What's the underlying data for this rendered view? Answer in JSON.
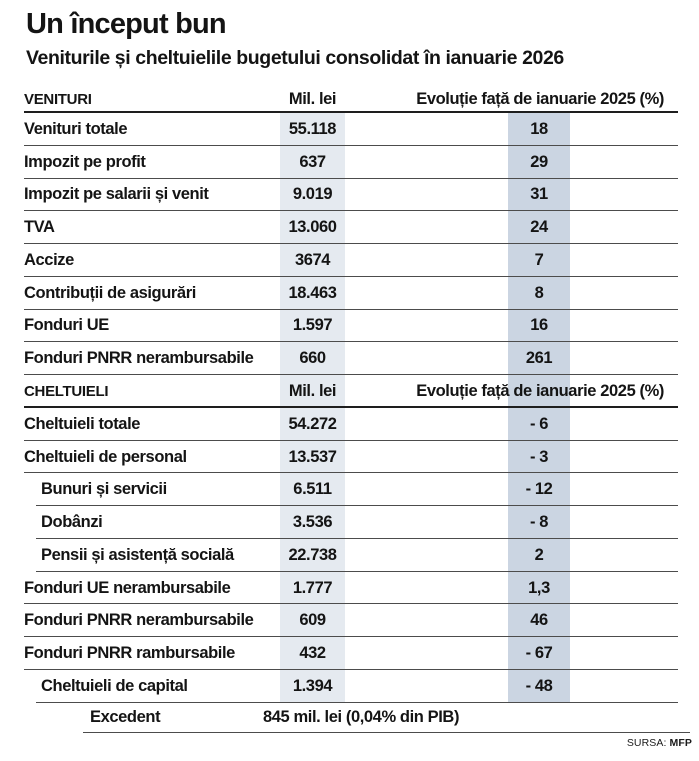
{
  "title": "Un început bun",
  "subtitle": "Veniturile și cheltuielile bugetului consolidat în ianuarie 2026",
  "source": {
    "label": "SURSA:",
    "value": "MFP"
  },
  "footer": {
    "label": "Excedent",
    "value": "845 mil. lei (0,04% din PIB)"
  },
  "colors": {
    "band_amount": "#e5eaf0",
    "band_evolution": "#cbd5e2",
    "row_rule": "#4c4c4c",
    "header_rule": "#1e1e1e"
  },
  "chart_data": {
    "type": "table",
    "title": "Un început bun",
    "subtitle": "Veniturile și cheltuielile bugetului consolidat în ianuarie 2026",
    "columns": {
      "amount": "Mil. lei",
      "evolution": "Evoluție față de ianuarie 2025 (%)"
    },
    "sections": [
      {
        "header": "VENITURI",
        "rows": [
          {
            "label": "Venituri totale",
            "amount": "55.118",
            "evolution": "18",
            "sub": false
          },
          {
            "label": "Impozit pe profit",
            "amount": "637",
            "evolution": "29",
            "sub": false
          },
          {
            "label": "Impozit pe salarii și venit",
            "amount": "9.019",
            "evolution": "31",
            "sub": false
          },
          {
            "label": "TVA",
            "amount": "13.060",
            "evolution": "24",
            "sub": false
          },
          {
            "label": "Accize",
            "amount": "3674",
            "evolution": "7",
            "sub": false
          },
          {
            "label": "Contribuții de asigurări",
            "amount": "18.463",
            "evolution": "8",
            "sub": false
          },
          {
            "label": "Fonduri UE",
            "amount": "1.597",
            "evolution": "16",
            "sub": false
          },
          {
            "label": "Fonduri PNRR nerambursabile",
            "amount": "660",
            "evolution": "261",
            "sub": false
          }
        ]
      },
      {
        "header": "CHELTUIELI",
        "rows": [
          {
            "label": "Cheltuieli totale",
            "amount": "54.272",
            "evolution": "- 6",
            "sub": false
          },
          {
            "label": "Cheltuieli de personal",
            "amount": "13.537",
            "evolution": "- 3",
            "sub": false
          },
          {
            "label": "Bunuri și servicii",
            "amount": "6.511",
            "evolution": "- 12",
            "sub": true
          },
          {
            "label": "Dobânzi",
            "amount": "3.536",
            "evolution": "- 8",
            "sub": true
          },
          {
            "label": "Pensii și asistență socială",
            "amount": "22.738",
            "evolution": "2",
            "sub": true
          },
          {
            "label": "Fonduri UE nerambursabile",
            "amount": "1.777",
            "evolution": "1,3",
            "sub": false
          },
          {
            "label": "Fonduri PNRR nerambursabile",
            "amount": "609",
            "evolution": "46",
            "sub": false
          },
          {
            "label": "Fonduri PNRR rambursabile",
            "amount": "432",
            "evolution": "- 67",
            "sub": false
          },
          {
            "label": "Cheltuieli de capital",
            "amount": "1.394",
            "evolution": "- 48",
            "sub": true
          }
        ]
      }
    ],
    "footer": {
      "label": "Excedent",
      "value": "845 mil. lei (0,04% din PIB)"
    },
    "source": "SURSA: MFP",
    "layout": {
      "grid": "horizontal row rules",
      "column_bands": true
    }
  }
}
